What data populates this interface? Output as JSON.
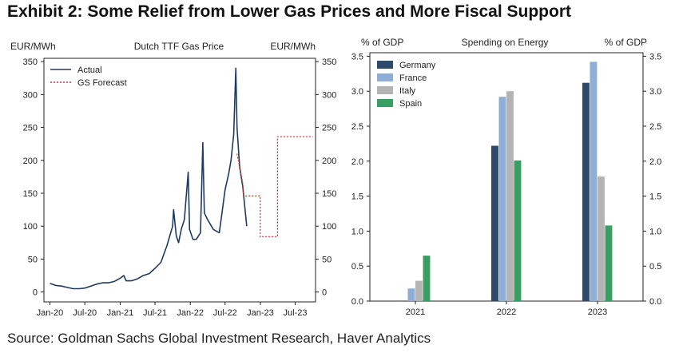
{
  "header": {
    "title": "Exhibit 2: Some Relief from Lower Gas Prices and More Fiscal Support"
  },
  "footer": {
    "source": "Source: Goldman Sachs Global Investment Research, Haver Analytics"
  },
  "chart_data": [
    {
      "type": "line",
      "title": "Dutch TTF Gas Price",
      "ylabel_left": "EUR/MWh",
      "ylabel_right": "EUR/MWh",
      "ylim": [
        -15,
        355
      ],
      "yticks": [
        0,
        50,
        100,
        150,
        200,
        250,
        300,
        350
      ],
      "xlim": [
        "2019-12-01",
        "2023-10-15"
      ],
      "xticks": [
        "Jan-20",
        "Jul-20",
        "Jan-21",
        "Jul-21",
        "Jan-22",
        "Jul-22",
        "Jan-23",
        "Jul-23"
      ],
      "legend_position": "top-left",
      "colors": {
        "actual": "#1f3a5f",
        "forecast": "#d23a3a"
      },
      "series": [
        {
          "name": "Actual",
          "style": "solid",
          "points": [
            [
              "2020-01-01",
              13
            ],
            [
              "2020-02-01",
              10
            ],
            [
              "2020-03-01",
              9
            ],
            [
              "2020-04-01",
              7
            ],
            [
              "2020-05-01",
              5
            ],
            [
              "2020-06-01",
              5
            ],
            [
              "2020-07-01",
              6
            ],
            [
              "2020-08-01",
              9
            ],
            [
              "2020-09-01",
              12
            ],
            [
              "2020-10-01",
              14
            ],
            [
              "2020-11-01",
              14
            ],
            [
              "2020-12-01",
              16
            ],
            [
              "2021-01-01",
              21
            ],
            [
              "2021-01-20",
              25
            ],
            [
              "2021-02-01",
              17
            ],
            [
              "2021-03-01",
              17
            ],
            [
              "2021-04-01",
              20
            ],
            [
              "2021-05-01",
              25
            ],
            [
              "2021-06-01",
              28
            ],
            [
              "2021-07-01",
              36
            ],
            [
              "2021-08-01",
              45
            ],
            [
              "2021-09-01",
              70
            ],
            [
              "2021-10-01",
              100
            ],
            [
              "2021-10-06",
              125
            ],
            [
              "2021-10-20",
              85
            ],
            [
              "2021-11-01",
              75
            ],
            [
              "2021-11-15",
              95
            ],
            [
              "2021-12-01",
              110
            ],
            [
              "2021-12-21",
              182
            ],
            [
              "2021-12-28",
              95
            ],
            [
              "2022-01-15",
              80
            ],
            [
              "2022-02-01",
              80
            ],
            [
              "2022-02-23",
              90
            ],
            [
              "2022-03-07",
              227
            ],
            [
              "2022-03-15",
              120
            ],
            [
              "2022-04-01",
              110
            ],
            [
              "2022-05-01",
              95
            ],
            [
              "2022-06-01",
              90
            ],
            [
              "2022-06-15",
              120
            ],
            [
              "2022-07-01",
              155
            ],
            [
              "2022-07-20",
              180
            ],
            [
              "2022-08-01",
              200
            ],
            [
              "2022-08-15",
              240
            ],
            [
              "2022-08-26",
              340
            ],
            [
              "2022-09-01",
              250
            ],
            [
              "2022-09-15",
              190
            ],
            [
              "2022-10-01",
              160
            ],
            [
              "2022-10-15",
              120
            ],
            [
              "2022-10-22",
              100
            ]
          ]
        },
        {
          "name": "GS Forecast",
          "style": "dotted",
          "points": [
            [
              "2022-09-01",
              210
            ],
            [
              "2022-09-15",
              190
            ],
            [
              "2022-10-01",
              165
            ],
            [
              "2022-10-05",
              146
            ],
            [
              "2022-12-31",
              146
            ],
            [
              "2022-12-31",
              84
            ],
            [
              "2023-03-31",
              84
            ],
            [
              "2023-03-31",
              236
            ],
            [
              "2023-10-01",
              236
            ]
          ]
        }
      ]
    },
    {
      "type": "bar",
      "title": "Spending on Energy",
      "ylabel_left": "% of GDP",
      "ylabel_right": "% of GDP",
      "ylim": [
        0,
        3.55
      ],
      "yticks": [
        "0.0",
        "0.5",
        "1.0",
        "1.5",
        "2.0",
        "2.5",
        "3.0",
        "3.5"
      ],
      "categories": [
        "2021",
        "2022",
        "2023"
      ],
      "legend_position": "top-left",
      "series": [
        {
          "name": "Germany",
          "color": "#2e4a6b",
          "values": [
            0.0,
            2.22,
            3.12
          ]
        },
        {
          "name": "France",
          "color": "#8eaed6",
          "values": [
            0.18,
            2.92,
            3.42
          ]
        },
        {
          "name": "Italy",
          "color": "#b4b4b4",
          "values": [
            0.29,
            3.0,
            1.78
          ]
        },
        {
          "name": "Spain",
          "color": "#3a9e62",
          "values": [
            0.65,
            2.01,
            1.08
          ]
        }
      ]
    }
  ]
}
